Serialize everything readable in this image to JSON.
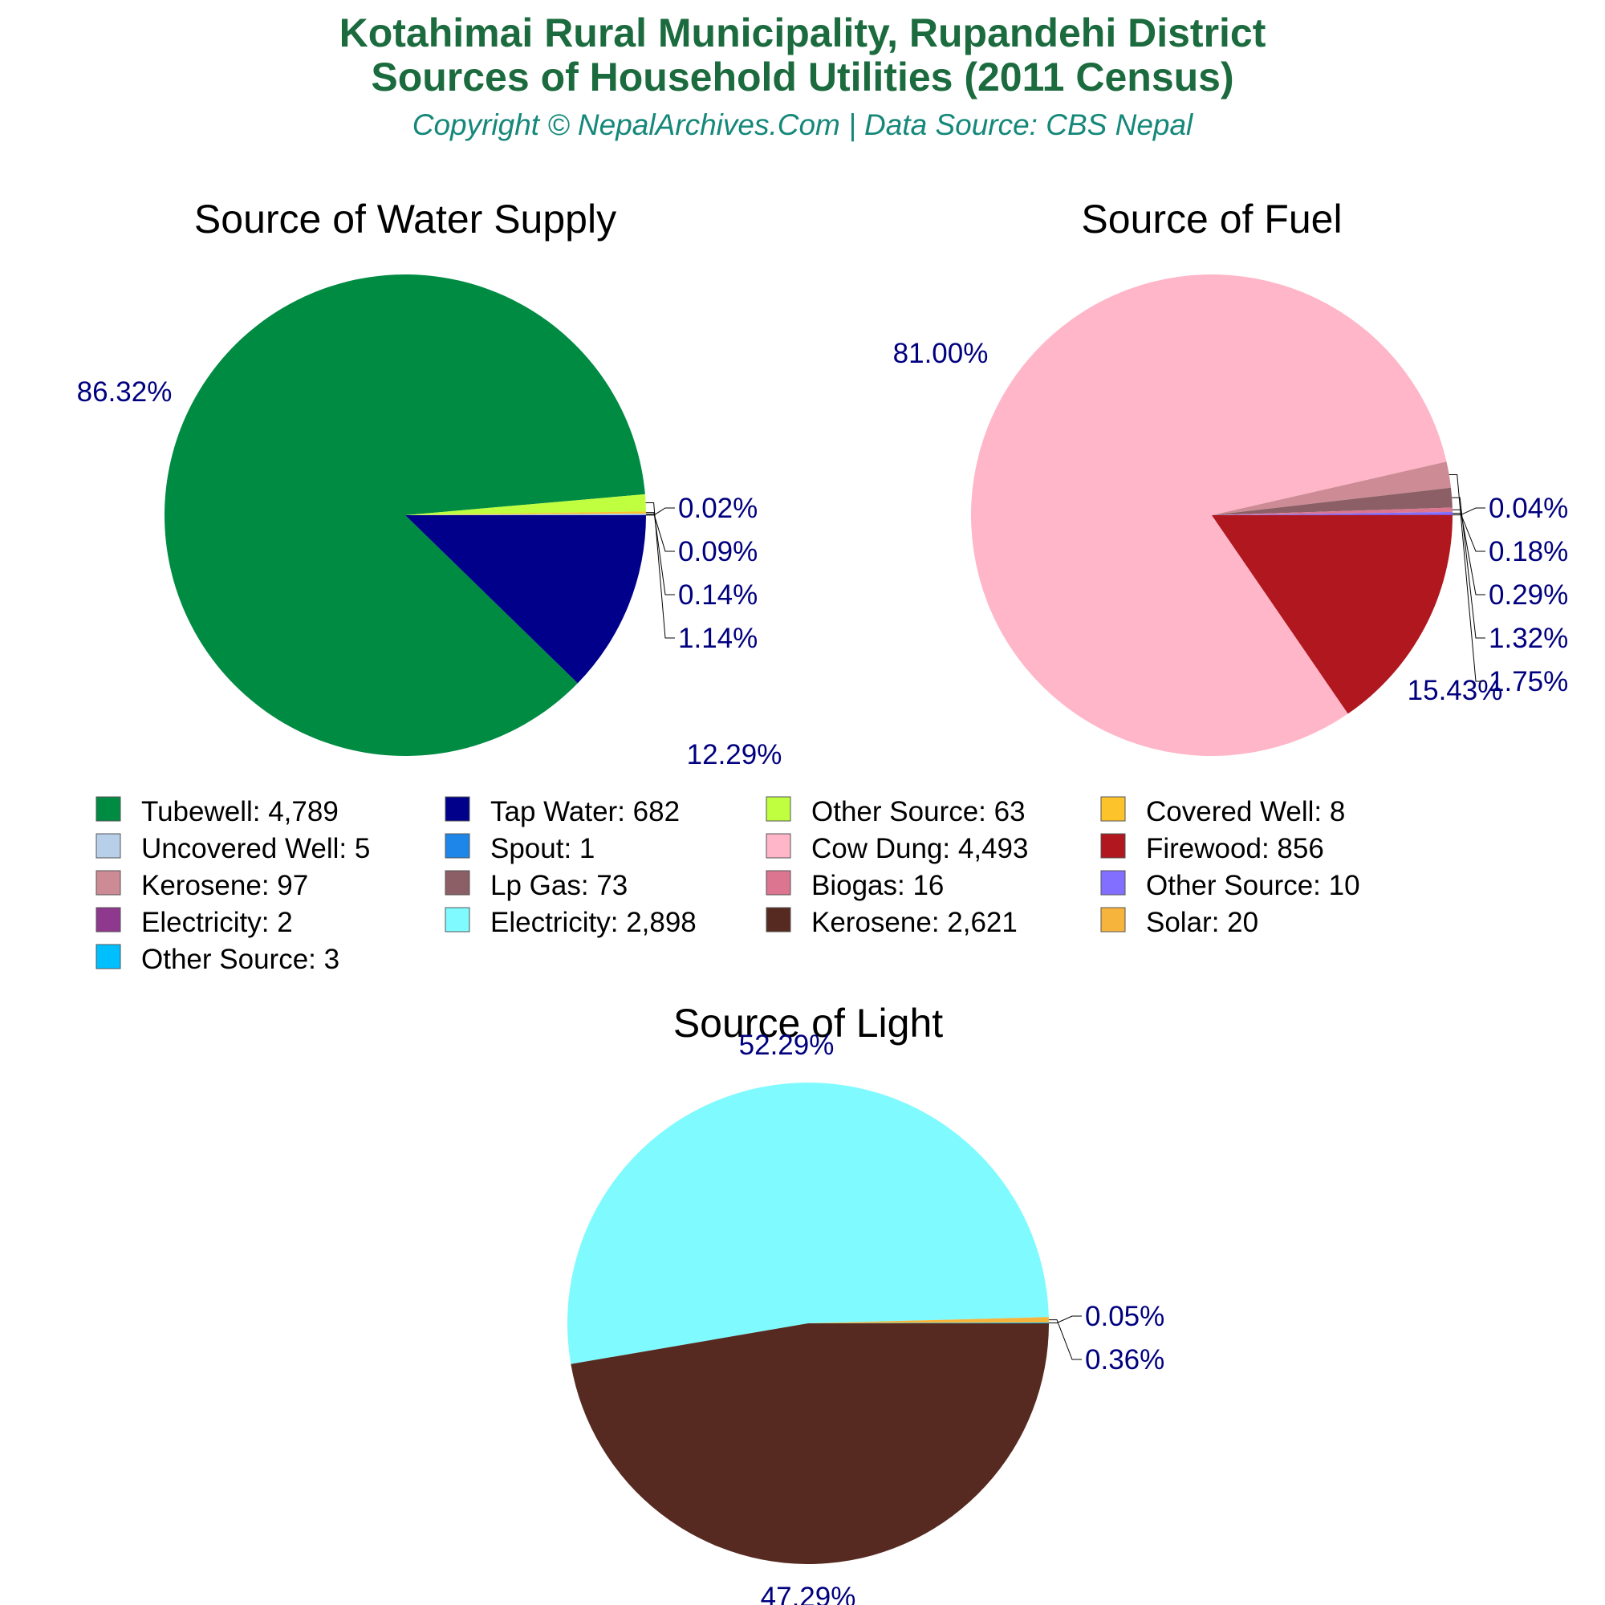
{
  "header": {
    "title_line1": "Kotahimai Rural Municipality, Rupandehi District",
    "title_line2": "Sources of Household Utilities (2011 Census)",
    "subtitle": "Copyright © NepalArchives.Com | Data Source: CBS Nepal",
    "title_color": "#1b6b3e",
    "subtitle_color": "#15887a",
    "label_color": "#00007f"
  },
  "chart_data": [
    {
      "type": "pie",
      "title": "Source of Water Supply",
      "slices": [
        {
          "name": "Tubewell",
          "value": 4789,
          "display": "4,789",
          "percent": "86.32%",
          "color": "#008b43"
        },
        {
          "name": "Tap Water",
          "value": 682,
          "display": "682",
          "percent": "12.29%",
          "color": "#00008b"
        },
        {
          "name": "Other Source",
          "value": 63,
          "display": "63",
          "percent": "1.14%",
          "color": "#bfff3f"
        },
        {
          "name": "Covered Well",
          "value": 8,
          "display": "8",
          "percent": "0.14%",
          "color": "#fcc32a"
        },
        {
          "name": "Uncovered Well",
          "value": 5,
          "display": "5",
          "percent": "0.09%",
          "color": "#b8cfea"
        },
        {
          "name": "Spout",
          "value": 1,
          "display": "1",
          "percent": "0.02%",
          "color": "#1e86e9"
        }
      ]
    },
    {
      "type": "pie",
      "title": "Source of Fuel",
      "slices": [
        {
          "name": "Cow Dung",
          "value": 4493,
          "display": "4,493",
          "percent": "81.00%",
          "color": "#ffb6c8"
        },
        {
          "name": "Firewood",
          "value": 856,
          "display": "856",
          "percent": "15.43%",
          "color": "#b0171f"
        },
        {
          "name": "Kerosene",
          "value": 97,
          "display": "97",
          "percent": "1.75%",
          "color": "#cd8c95"
        },
        {
          "name": "Lp Gas",
          "value": 73,
          "display": "73",
          "percent": "1.32%",
          "color": "#8b5f65"
        },
        {
          "name": "Biogas",
          "value": 16,
          "display": "16",
          "percent": "0.29%",
          "color": "#dc758f"
        },
        {
          "name": "Other Source",
          "value": 10,
          "display": "10",
          "percent": "0.18%",
          "color": "#836fff"
        },
        {
          "name": "Electricity",
          "value": 2,
          "display": "2",
          "percent": "0.04%",
          "color": "#8e388e"
        }
      ]
    },
    {
      "type": "pie",
      "title": "Source of Light",
      "slices": [
        {
          "name": "Electricity",
          "value": 2898,
          "display": "2,898",
          "percent": "52.29%",
          "color": "#7ffaff"
        },
        {
          "name": "Kerosene",
          "value": 2621,
          "display": "2,621",
          "percent": "47.29%",
          "color": "#572a21"
        },
        {
          "name": "Solar",
          "value": 20,
          "display": "20",
          "percent": "0.36%",
          "color": "#f7b43c"
        },
        {
          "name": "Other Source",
          "value": 3,
          "display": "3",
          "percent": "0.05%",
          "color": "#00bfff"
        }
      ]
    }
  ]
}
